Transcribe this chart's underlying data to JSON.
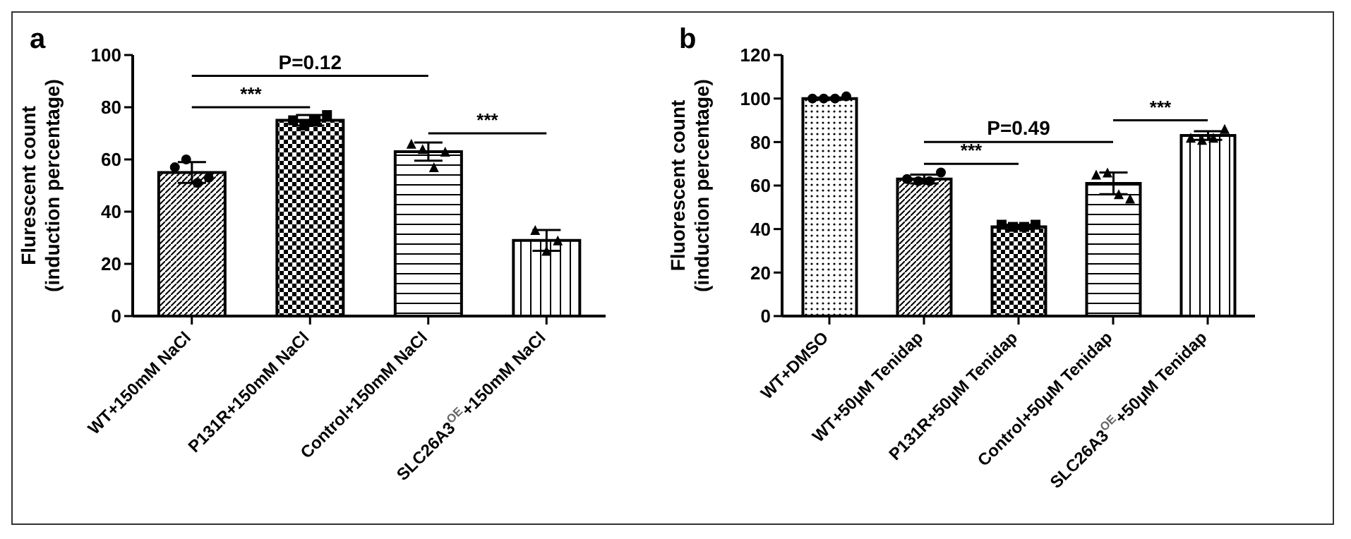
{
  "chart_data": [
    {
      "type": "bar",
      "title": "a",
      "ylabel": "Flurescent count\n(induction percentage)",
      "categories": [
        "WT+150mM NaCl",
        "P131R+150mM NaCl",
        "Control+150mM NaCl",
        "SLC26A3$^{OE}$+150mM NaCl"
      ],
      "ylim": [
        0,
        100
      ],
      "yticks": [
        0,
        20,
        40,
        60,
        80,
        100
      ],
      "annotations": [
        "***",
        "P=0.12",
        "***"
      ],
      "series": [
        {
          "type": "bar",
          "color": "#000000",
          "values": [
            55,
            75,
            63,
            29
          ],
          "errors": [
            4,
            2,
            3.5,
            4
          ]
        },
        {
          "type": "scatter",
          "marker": "circle",
          "color": "#000000",
          "x": [
            "WT+150mM NaCl",
            "WT+150mM NaCl",
            "WT+150mM NaCl",
            "WT+150mM NaCl"
          ],
          "values": [
            57,
            60,
            51,
            53
          ]
        },
        {
          "type": "scatter",
          "marker": "square",
          "color": "#000000",
          "x": [
            "P131R+150mM NaCl",
            "P131R+150mM NaCl",
            "P131R+150mM NaCl",
            "P131R+150mM NaCl"
          ],
          "values": [
            75,
            73,
            75,
            77
          ]
        },
        {
          "type": "scatter",
          "marker": "triangle",
          "color": "#000000",
          "x": [
            "Control+150mM NaCl",
            "Control+150mM NaCl",
            "Control+150mM NaCl",
            "Control+150mM NaCl"
          ],
          "values": [
            66,
            64,
            57,
            63
          ]
        },
        {
          "type": "scatter",
          "marker": "triangle",
          "color": "#000000",
          "x": [
            "SLC26A3$^{OE}$+150mM NaCl",
            "SLC26A3$^{OE}$+150mM NaCl",
            "SLC26A3$^{OE}$+150mM NaCl"
          ],
          "values": [
            33,
            25,
            29
          ]
        }
      ]
    },
    {
      "type": "bar",
      "title": "b",
      "ylabel": "Fluorescent count\n(induction percentage)",
      "categories": [
        "WT+DMSO",
        "WT+50μM Tenidap",
        "P131R+50μM Tenidap",
        "Control+50μM Tenidap",
        "SLC26A3$^{OE}$+50μM Tenidap"
      ],
      "ylim": [
        0,
        120
      ],
      "yticks": [
        0,
        20,
        40,
        60,
        80,
        100,
        120
      ],
      "annotations": [
        "***",
        "P=0.49",
        "***"
      ],
      "series": [
        {
          "type": "bar",
          "color": "#000000",
          "values": [
            100,
            63,
            41,
            61,
            83
          ],
          "errors": [
            0.5,
            2,
            1,
            5,
            2
          ]
        },
        {
          "type": "scatter",
          "marker": "circle",
          "color": "#000000",
          "x": [
            "WT+DMSO",
            "WT+DMSO",
            "WT+DMSO",
            "WT+DMSO"
          ],
          "values": [
            100,
            100,
            100,
            101
          ]
        },
        {
          "type": "scatter",
          "marker": "circle",
          "color": "#000000",
          "x": [
            "WT+50μM Tenidap",
            "WT+50μM Tenidap",
            "WT+50μM Tenidap",
            "WT+50μM Tenidap"
          ],
          "values": [
            63,
            62,
            62,
            66
          ]
        },
        {
          "type": "scatter",
          "marker": "square",
          "color": "#000000",
          "x": [
            "P131R+50μM Tenidap",
            "P131R+50μM Tenidap",
            "P131R+50μM Tenidap",
            "P131R+50μM Tenidap"
          ],
          "values": [
            42,
            41,
            41,
            42
          ]
        },
        {
          "type": "scatter",
          "marker": "triangle",
          "color": "#000000",
          "x": [
            "Control+50μM Tenidap",
            "Control+50μM Tenidap",
            "Control+50μM Tenidap",
            "Control+50μM Tenidap"
          ],
          "values": [
            65,
            66,
            56,
            54
          ]
        },
        {
          "type": "scatter",
          "marker": "triangle",
          "color": "#000000",
          "x": [
            "SLC26A3$^{OE}$+50μM Tenidap",
            "SLC26A3$^{OE}$+50μM Tenidap",
            "SLC26A3$^{OE}$+50μM Tenidap",
            "SLC26A3$^{OE}$+50μM Tenidap"
          ],
          "values": [
            82,
            81,
            82,
            86
          ]
        }
      ]
    }
  ]
}
